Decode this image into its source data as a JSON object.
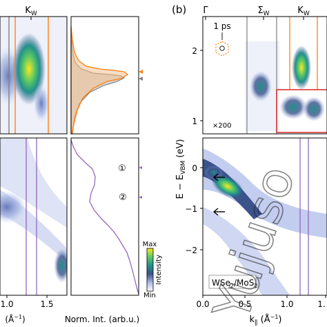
{
  "panel_label_b": "(b)",
  "watermark": "Yujuso",
  "left_top": {
    "x_tick_label": "K",
    "x_tick_sub": "W"
  },
  "left_bottom": {
    "x_tick_labels": [
      "1.0",
      "1.5"
    ],
    "x_unit": "(Å",
    "x_unit_sup": "−1",
    "x_unit_close": ")"
  },
  "middle": {
    "xlabel": "Norm. Int. (arb.u.)",
    "markers": [
      "①",
      "②"
    ]
  },
  "colorbar": {
    "max_label": "Max",
    "min_label": "Min",
    "title": "Intensity"
  },
  "right_top": {
    "annotation_time": "1 ps",
    "annotation_scale": "×200",
    "top_labels": [
      {
        "main": "Γ",
        "sub": ""
      },
      {
        "main": "Σ",
        "sub": "W"
      },
      {
        "main": "K",
        "sub": "W"
      }
    ],
    "y_ticks": [
      "2",
      "1"
    ]
  },
  "right_bottom": {
    "sample_label_parts": [
      "WSe",
      "2",
      "/MoS",
      "2"
    ],
    "y_ticks": [
      "0",
      "−1",
      "−2"
    ],
    "x_ticks": [
      "0.0",
      "0.5",
      "1.0",
      "1."
    ],
    "xlabel_main": "k",
    "xlabel_sub": "∥",
    "xlabel_unit": "(Å",
    "xlabel_sup": "−1",
    "xlabel_close": ")"
  },
  "right_ylabel": {
    "prefix": "E − E",
    "sub": "VBM",
    "unit": " (eV)"
  },
  "colors": {
    "orange": "#ff7f0e",
    "purple": "#9467bd",
    "red": "#d62728",
    "grey": "#808080"
  },
  "chart_data": [
    {
      "type": "heatmap",
      "panel": "left-top",
      "x_tick_labels": [
        "K_W"
      ],
      "overlay": "orange and grey vertical cut lines"
    },
    {
      "type": "heatmap",
      "panel": "left-bottom",
      "x": [
        1.0,
        1.5
      ],
      "x_tick_labels": [
        "1.0",
        "1.5"
      ],
      "xlabel": "(Å−1)",
      "overlay": "purple vertical cut lines"
    },
    {
      "type": "line",
      "panel": "middle-top",
      "series": [
        {
          "color": "orange",
          "filled": true
        },
        {
          "color": "grey",
          "filled": true
        }
      ]
    },
    {
      "type": "line",
      "panel": "middle-bottom",
      "xlabel": "Norm. Int. (arb.u.)",
      "series": [
        {
          "color": "purple"
        }
      ],
      "annotations": [
        "①",
        "②"
      ]
    },
    {
      "type": "heatmap",
      "panel": "right-top",
      "ylabel": "E − E_VBM (eV)",
      "yticks": [
        1,
        2
      ],
      "ylim": [
        0.8,
        2.5
      ],
      "x_tick_labels": [
        "Γ",
        "Σ_W",
        "K_W"
      ],
      "annotations": [
        "1 ps",
        "×200"
      ]
    },
    {
      "type": "heatmap",
      "panel": "right-bottom",
      "xlabel": "k∥ (Å−1)",
      "ylabel": "E − E_VBM (eV)",
      "xticks": [
        0.0,
        0.5,
        1.0
      ],
      "yticks": [
        0,
        -1,
        -2
      ],
      "xlim": [
        0.0,
        1.45
      ],
      "ylim": [
        -2.3,
        0.45
      ],
      "annotations": [
        "WSe2/MoS2"
      ]
    }
  ]
}
